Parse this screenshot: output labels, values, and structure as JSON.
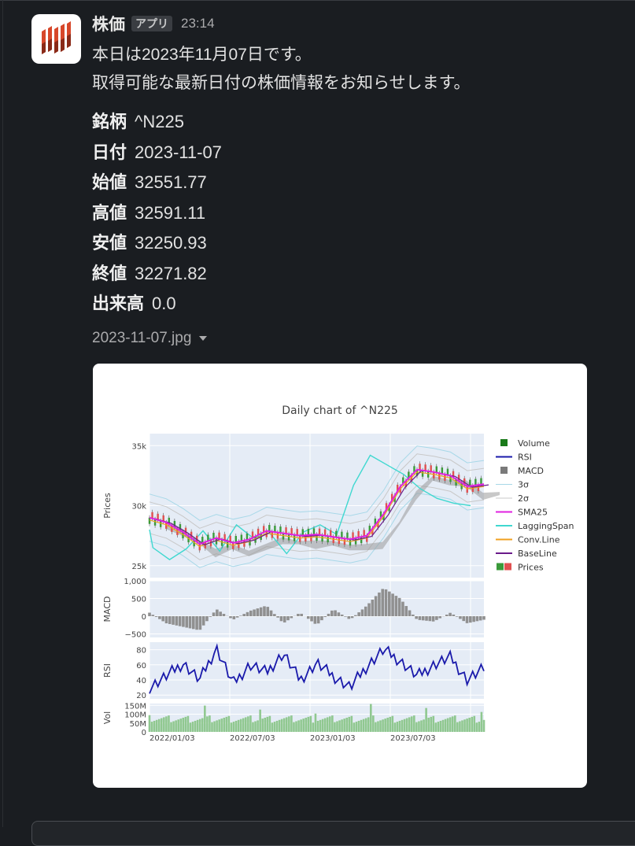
{
  "message": {
    "sender": "株価",
    "badge": "アプリ",
    "time": "23:14",
    "lines": [
      "本日は2023年11月07日です。",
      "取得可能な最新日付の株価情報をお知らせします。"
    ],
    "fields": [
      {
        "key": "銘柄",
        "value": "^N225"
      },
      {
        "key": "日付",
        "value": "2023-11-07"
      },
      {
        "key": "始値",
        "value": "32551.77"
      },
      {
        "key": "高値",
        "value": "32591.11"
      },
      {
        "key": "安値",
        "value": "32250.93"
      },
      {
        "key": "終値",
        "value": "32271.82"
      },
      {
        "key": "出来高",
        "value": "0.0"
      }
    ],
    "attachment": {
      "filename": "2023-11-07.jpg",
      "caret_icon": "chevron-down-icon"
    }
  },
  "colors": {
    "background": "#1a1d21",
    "avatar_red": "#d7472a",
    "plot_bg": "#e5ecf6",
    "rsi": "#1a1aab",
    "sma25": "#e020e0",
    "lagging": "#40d8d0",
    "conv": "#f0a020",
    "base": "#6a1a8a",
    "macd": "#909090",
    "volume": "#90c890"
  },
  "chart_data": {
    "type": "line",
    "title": "Daily chart of ^N225",
    "x_ticks": [
      "2022/01/03",
      "2022/07/03",
      "2023/01/03",
      "2023/07/03"
    ],
    "legend_position": "right",
    "legend": [
      "Volume",
      "RSI",
      "MACD",
      "3σ",
      "2σ",
      "SMA25",
      "LaggingSpan",
      "Conv.Line",
      "BaseLine",
      "Prices"
    ],
    "panels": [
      {
        "name": "Prices",
        "ylabel": "Prices",
        "ylim": [
          24000,
          36000
        ],
        "y_ticks": [
          {
            "v": 25000,
            "label": "25k"
          },
          {
            "v": 30000,
            "label": "30k"
          },
          {
            "v": 35000,
            "label": "35k"
          }
        ],
        "x": [
          0,
          0.05,
          0.1,
          0.15,
          0.2,
          0.25,
          0.3,
          0.35,
          0.4,
          0.45,
          0.5,
          0.55,
          0.6,
          0.65,
          0.7,
          0.75,
          0.8,
          0.85,
          0.9,
          0.95,
          1.0
        ],
        "sma25": [
          29000,
          28600,
          27800,
          26800,
          27300,
          26900,
          27200,
          27900,
          27700,
          27500,
          27600,
          27400,
          27200,
          27500,
          29300,
          31600,
          33000,
          32800,
          32500,
          31600,
          31800
        ],
        "lagging_span": [
          28000,
          26500,
          25500,
          26400,
          27900,
          26200,
          28400,
          27300,
          27700,
          26000,
          27800,
          28400,
          27600,
          31700,
          34200,
          33400,
          32600,
          31400,
          30600,
          30200,
          30000
        ]
      },
      {
        "name": "MACD",
        "ylabel": "MACD",
        "ylim": [
          -600,
          1000
        ],
        "y_ticks": [
          {
            "v": 1000,
            "label": "1,000"
          },
          {
            "v": 500,
            "label": "500"
          },
          {
            "v": 0,
            "label": "0"
          },
          {
            "v": -500,
            "label": "−500"
          }
        ],
        "x": [
          0,
          0.05,
          0.1,
          0.15,
          0.2,
          0.25,
          0.3,
          0.35,
          0.4,
          0.45,
          0.5,
          0.55,
          0.6,
          0.65,
          0.7,
          0.75,
          0.8,
          0.85,
          0.9,
          0.95,
          1.0
        ],
        "values": [
          100,
          -200,
          -300,
          -400,
          200,
          -100,
          150,
          300,
          -200,
          100,
          -250,
          200,
          -100,
          300,
          800,
          500,
          -100,
          -150,
          100,
          -200,
          -100
        ]
      },
      {
        "name": "RSI",
        "ylabel": "RSI",
        "ylim": [
          15,
          90
        ],
        "y_ticks": [
          {
            "v": 20,
            "label": "20"
          },
          {
            "v": 40,
            "label": "40"
          },
          {
            "v": 60,
            "label": "60"
          },
          {
            "v": 80,
            "label": "80"
          }
        ],
        "x": [
          0,
          0.05,
          0.1,
          0.15,
          0.2,
          0.25,
          0.3,
          0.35,
          0.4,
          0.45,
          0.5,
          0.55,
          0.6,
          0.65,
          0.7,
          0.75,
          0.8,
          0.85,
          0.9,
          0.95,
          1.0
        ],
        "values": [
          30,
          45,
          62,
          40,
          82,
          35,
          60,
          50,
          75,
          40,
          62,
          45,
          30,
          58,
          80,
          65,
          45,
          60,
          70,
          40,
          55
        ]
      },
      {
        "name": "Volume",
        "ylabel": "Vol",
        "ylim": [
          0,
          160000000
        ],
        "y_ticks": [
          {
            "v": 0,
            "label": "0"
          },
          {
            "v": 50000000,
            "label": "50M"
          },
          {
            "v": 100000000,
            "label": "100M"
          },
          {
            "v": 150000000,
            "label": "150M"
          }
        ],
        "typical_value": 75000000
      }
    ]
  }
}
